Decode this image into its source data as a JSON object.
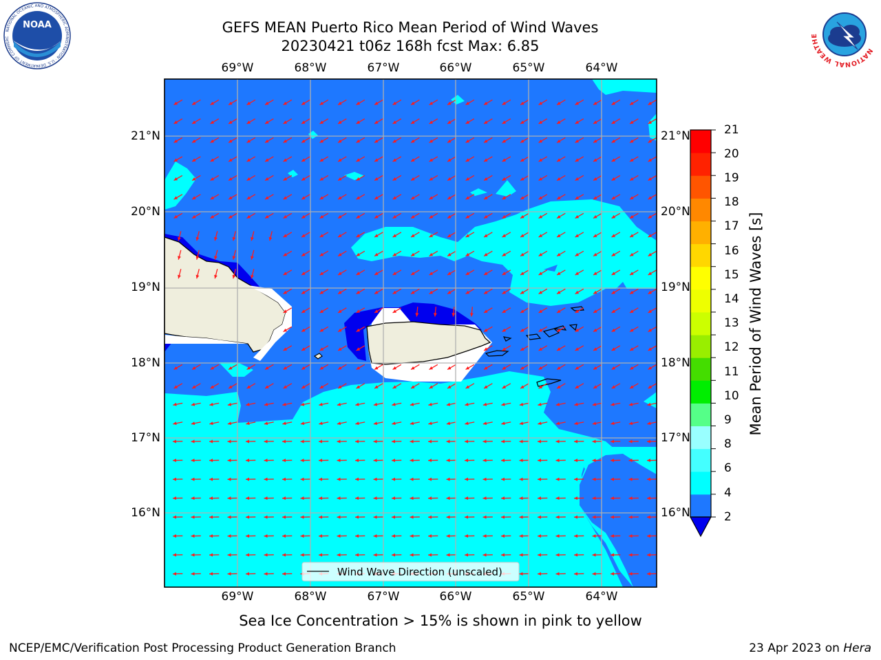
{
  "header": {
    "title_line1": "GEFS MEAN Puerto Rico Mean Period of Wind Waves",
    "title_line2": "20230421 t06z 168h fcst   Max: 6.85"
  },
  "logos": {
    "noaa_text": "NOAA",
    "noaa_ring": "NATIONAL OCEANIC AND ATMOSPHERIC ADMINISTRATION · U.S. DEPARTMENT OF COMMERCE",
    "nws_ring": "NATIONAL WEATHER SERVICE"
  },
  "map": {
    "lon_labels": [
      "69°W",
      "68°W",
      "67°W",
      "66°W",
      "65°W",
      "64°W"
    ],
    "lat_labels": [
      "21°N",
      "20°N",
      "19°N",
      "18°N",
      "17°N",
      "16°N"
    ],
    "legend_label": "Wind Wave Direction (unscaled)",
    "colors": {
      "band_2_4": "#1e78ff",
      "band_4_6": "#00ffff",
      "band_below_2": "#0000ee",
      "land": "#efeedd",
      "arrow": "#ff1a1a"
    }
  },
  "colorbar": {
    "label": "Mean Period of Wind Waves [s]",
    "ticks": [
      "21",
      "20",
      "19",
      "18",
      "17",
      "16",
      "15",
      "14",
      "13",
      "12",
      "11",
      "10",
      "9",
      "8",
      "6",
      "4",
      "2"
    ],
    "colors_bottom_to_top": [
      "#1e78ff",
      "#00ffff",
      "#44ffff",
      "#99ffff",
      "#55ff88",
      "#00ee00",
      "#44dd00",
      "#99ee00",
      "#ccff00",
      "#eeff00",
      "#ffff00",
      "#ffd700",
      "#ffb000",
      "#ff8800",
      "#ff5500",
      "#ff2200",
      "#ff0000"
    ],
    "under_color": "#0000ee"
  },
  "footer": {
    "caption": "Sea Ice Concentration > 15% is shown in pink to yellow",
    "credit": "NCEP/EMC/Verification Post Processing Product Generation Branch",
    "date": "23 Apr 2023 on ",
    "host": "Hera"
  }
}
